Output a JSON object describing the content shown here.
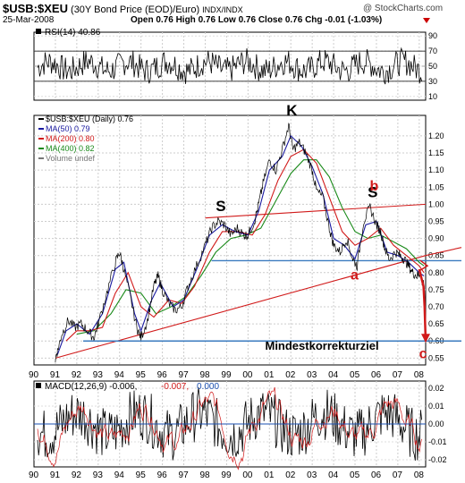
{
  "header": {
    "symbol": "$USB:$XEU",
    "description": "(30Y Bond Price (EOD)/Euro)",
    "exchange": "INDX/INDX",
    "watermark": "@ StockCharts.com",
    "date": "25-Mar-2008",
    "ohlc": "Open 0.76  High 0.76  Low 0.76  Close 0.76  Chg -0.01 (-1.03%)"
  },
  "chart_data": [
    {
      "type": "line",
      "panel": "rsi",
      "label": "RSI(14) 40.86",
      "y_ticks": [
        10,
        30,
        50,
        70,
        90
      ],
      "ylim": [
        5,
        95
      ],
      "guide_lines": [
        30,
        70
      ],
      "value": 40.86
    },
    {
      "type": "line",
      "panel": "price",
      "x_ticks": [
        "90",
        "91",
        "92",
        "93",
        "94",
        "95",
        "96",
        "97",
        "98",
        "99",
        "00",
        "01",
        "02",
        "03",
        "04",
        "05",
        "06",
        "07",
        "08"
      ],
      "x_range": [
        1990.0,
        2008.3
      ],
      "y_ticks": [
        0.55,
        0.6,
        0.65,
        0.7,
        0.75,
        0.8,
        0.85,
        0.9,
        0.95,
        1.0,
        1.05,
        1.1,
        1.15,
        1.2
      ],
      "ylim": [
        0.53,
        1.26
      ],
      "grid": true,
      "legend": [
        {
          "label": "$USB:$XEU (Daily) 0.76",
          "color": "#000000"
        },
        {
          "label": "MA(50) 0.79",
          "color": "#1a1aa0"
        },
        {
          "label": "MA(200) 0.80",
          "color": "#d11a1a"
        },
        {
          "label": "MA(400) 0.82",
          "color": "#1a8a1a"
        },
        {
          "label": "Volume undef",
          "color": "#777777"
        }
      ],
      "series": [
        {
          "name": "$USB:$XEU (Daily)",
          "points": [
            [
              1991.0,
              0.55
            ],
            [
              1991.1,
              0.57
            ],
            [
              1991.3,
              0.62
            ],
            [
              1991.6,
              0.66
            ],
            [
              1991.9,
              0.64
            ],
            [
              1992.2,
              0.65
            ],
            [
              1992.5,
              0.63
            ],
            [
              1992.8,
              0.61
            ],
            [
              1993.0,
              0.65
            ],
            [
              1993.4,
              0.74
            ],
            [
              1993.8,
              0.83
            ],
            [
              1994.0,
              0.86
            ],
            [
              1994.2,
              0.81
            ],
            [
              1994.5,
              0.73
            ],
            [
              1994.8,
              0.64
            ],
            [
              1995.0,
              0.61
            ],
            [
              1995.3,
              0.66
            ],
            [
              1995.6,
              0.76
            ],
            [
              1995.8,
              0.79
            ],
            [
              1996.0,
              0.75
            ],
            [
              1996.3,
              0.71
            ],
            [
              1996.6,
              0.69
            ],
            [
              1996.9,
              0.7
            ],
            [
              1997.2,
              0.76
            ],
            [
              1997.6,
              0.82
            ],
            [
              1998.0,
              0.88
            ],
            [
              1998.3,
              0.93
            ],
            [
              1998.6,
              0.95
            ],
            [
              1998.9,
              0.94
            ],
            [
              1999.2,
              0.91
            ],
            [
              1999.5,
              0.93
            ],
            [
              1999.8,
              0.91
            ],
            [
              2000.0,
              0.91
            ],
            [
              2000.3,
              0.95
            ],
            [
              2000.5,
              1.0
            ],
            [
              2000.7,
              1.06
            ],
            [
              2001.0,
              1.13
            ],
            [
              2001.3,
              1.1
            ],
            [
              2001.6,
              1.16
            ],
            [
              2001.9,
              1.23
            ],
            [
              2002.1,
              1.16
            ],
            [
              2002.4,
              1.18
            ],
            [
              2002.7,
              1.15
            ],
            [
              2003.0,
              1.1
            ],
            [
              2003.2,
              1.04
            ],
            [
              2003.5,
              1.02
            ],
            [
              2003.8,
              0.93
            ],
            [
              2004.0,
              0.88
            ],
            [
              2004.3,
              0.86
            ],
            [
              2004.6,
              0.9
            ],
            [
              2004.9,
              0.84
            ],
            [
              2005.1,
              0.82
            ],
            [
              2005.4,
              0.95
            ],
            [
              2005.7,
              0.99
            ],
            [
              2006.0,
              0.94
            ],
            [
              2006.2,
              0.92
            ],
            [
              2006.4,
              0.87
            ],
            [
              2006.6,
              0.84
            ],
            [
              2006.9,
              0.86
            ],
            [
              2007.1,
              0.85
            ],
            [
              2007.3,
              0.84
            ],
            [
              2007.5,
              0.82
            ],
            [
              2007.7,
              0.8
            ],
            [
              2007.9,
              0.79
            ],
            [
              2008.05,
              0.8
            ],
            [
              2008.15,
              0.77
            ],
            [
              2008.22,
              0.76
            ]
          ]
        },
        {
          "name": "MA(50)",
          "points": [
            [
              1991.1,
              0.56
            ],
            [
              1991.5,
              0.63
            ],
            [
              1992.0,
              0.65
            ],
            [
              1992.6,
              0.62
            ],
            [
              1993.2,
              0.68
            ],
            [
              1993.8,
              0.81
            ],
            [
              1994.2,
              0.83
            ],
            [
              1994.7,
              0.68
            ],
            [
              1995.0,
              0.63
            ],
            [
              1995.5,
              0.72
            ],
            [
              1995.9,
              0.77
            ],
            [
              1996.5,
              0.7
            ],
            [
              1997.0,
              0.72
            ],
            [
              1997.6,
              0.81
            ],
            [
              1998.2,
              0.91
            ],
            [
              1998.8,
              0.94
            ],
            [
              1999.4,
              0.92
            ],
            [
              2000.0,
              0.91
            ],
            [
              2000.5,
              0.98
            ],
            [
              2001.0,
              1.1
            ],
            [
              2001.6,
              1.14
            ],
            [
              2002.0,
              1.2
            ],
            [
              2002.5,
              1.17
            ],
            [
              2003.0,
              1.11
            ],
            [
              2003.5,
              1.03
            ],
            [
              2004.0,
              0.9
            ],
            [
              2004.5,
              0.88
            ],
            [
              2005.0,
              0.84
            ],
            [
              2005.5,
              0.94
            ],
            [
              2006.0,
              0.95
            ],
            [
              2006.5,
              0.86
            ],
            [
              2007.0,
              0.85
            ],
            [
              2007.5,
              0.83
            ],
            [
              2008.0,
              0.8
            ],
            [
              2008.22,
              0.79
            ]
          ]
        },
        {
          "name": "MA(200)",
          "points": [
            [
              1991.5,
              0.6
            ],
            [
              1992.0,
              0.63
            ],
            [
              1992.6,
              0.63
            ],
            [
              1993.2,
              0.64
            ],
            [
              1993.8,
              0.74
            ],
            [
              1994.4,
              0.8
            ],
            [
              1995.0,
              0.7
            ],
            [
              1995.6,
              0.67
            ],
            [
              1996.3,
              0.72
            ],
            [
              1996.9,
              0.71
            ],
            [
              1997.5,
              0.76
            ],
            [
              1998.2,
              0.86
            ],
            [
              1998.8,
              0.92
            ],
            [
              1999.5,
              0.92
            ],
            [
              2000.2,
              0.91
            ],
            [
              2000.8,
              0.97
            ],
            [
              2001.4,
              1.07
            ],
            [
              2002.0,
              1.14
            ],
            [
              2002.6,
              1.16
            ],
            [
              2003.2,
              1.12
            ],
            [
              2003.8,
              1.02
            ],
            [
              2004.4,
              0.92
            ],
            [
              2005.0,
              0.88
            ],
            [
              2005.6,
              0.9
            ],
            [
              2006.2,
              0.93
            ],
            [
              2006.8,
              0.88
            ],
            [
              2007.4,
              0.85
            ],
            [
              2008.0,
              0.82
            ],
            [
              2008.22,
              0.8
            ]
          ]
        },
        {
          "name": "MA(400)",
          "points": [
            [
              1992.0,
              0.62
            ],
            [
              1992.8,
              0.63
            ],
            [
              1993.6,
              0.68
            ],
            [
              1994.3,
              0.75
            ],
            [
              1995.0,
              0.74
            ],
            [
              1995.7,
              0.68
            ],
            [
              1996.4,
              0.7
            ],
            [
              1997.1,
              0.73
            ],
            [
              1997.8,
              0.79
            ],
            [
              1998.5,
              0.86
            ],
            [
              1999.2,
              0.9
            ],
            [
              1999.9,
              0.91
            ],
            [
              2000.6,
              0.93
            ],
            [
              2001.3,
              1.01
            ],
            [
              2002.0,
              1.09
            ],
            [
              2002.6,
              1.13
            ],
            [
              2003.2,
              1.13
            ],
            [
              2003.8,
              1.08
            ],
            [
              2004.4,
              0.99
            ],
            [
              2005.0,
              0.92
            ],
            [
              2005.6,
              0.9
            ],
            [
              2006.2,
              0.91
            ],
            [
              2006.8,
              0.89
            ],
            [
              2007.4,
              0.87
            ],
            [
              2008.0,
              0.83
            ],
            [
              2008.22,
              0.82
            ]
          ]
        }
      ],
      "annotations": [
        {
          "text": "K",
          "color": "#000000",
          "at": [
            2002.0,
            1.26
          ]
        },
        {
          "text": "S",
          "color": "#000000",
          "at": [
            1998.7,
            0.98
          ]
        },
        {
          "text": "S",
          "color": "#000000",
          "at": [
            2005.8,
            1.02
          ]
        },
        {
          "text": "b",
          "color": "#d11a1a",
          "at": [
            2005.9,
            1.04
          ]
        },
        {
          "text": "a",
          "color": "#d11a1a",
          "at": [
            2005.0,
            0.78
          ]
        },
        {
          "text": "c",
          "color": "#d11a1a",
          "at": [
            2008.2,
            0.55
          ]
        },
        {
          "text": "Mindestkorrekturziel",
          "color": "#000000",
          "at": [
            2000.8,
            0.575
          ]
        }
      ],
      "trend_lines": [
        {
          "color": "#d11a1a",
          "from": [
            1998.0,
            0.96
          ],
          "to": [
            2008.3,
            1.0
          ]
        },
        {
          "color": "#d11a1a",
          "from": [
            1991.0,
            0.55
          ],
          "to": [
            2008.3,
            0.85
          ]
        },
        {
          "color": "#3a7bbf",
          "from": [
            1998.3,
            0.835
          ],
          "to": [
            2008.3,
            0.835
          ]
        },
        {
          "color": "#3a7bbf",
          "from": [
            1992.3,
            0.6
          ],
          "to": [
            2008.3,
            0.6
          ]
        }
      ],
      "projection": {
        "color": "#d11a1a",
        "points": [
          [
            2008.0,
            0.81
          ],
          [
            2008.2,
            0.76
          ],
          [
            2008.25,
            0.7
          ],
          [
            2008.3,
            0.6
          ]
        ]
      }
    },
    {
      "type": "line",
      "panel": "macd",
      "label_black": "MACD(12,26,9) -0.006,",
      "label_red": "-0.007,",
      "label_blue": "0.000",
      "y_ticks": [
        -0.02,
        -0.01,
        0.0,
        0.01,
        0.02
      ],
      "ylim": [
        -0.024,
        0.024
      ]
    }
  ]
}
